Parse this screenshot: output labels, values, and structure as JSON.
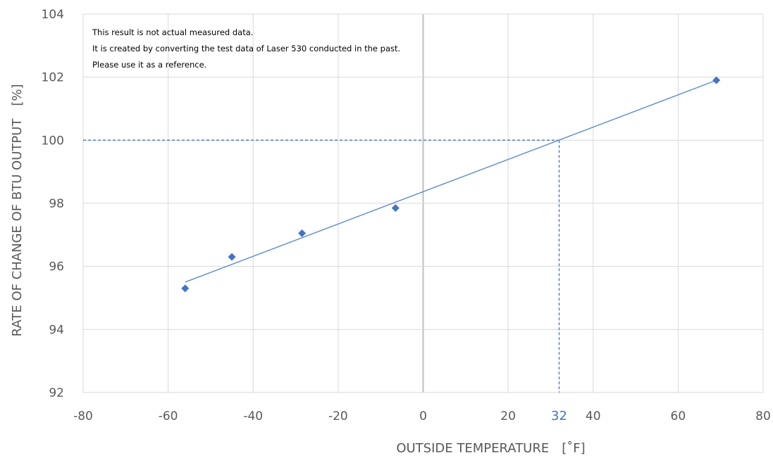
{
  "chart_data": {
    "type": "scatter",
    "xlabel": "OUTSIDE TEMPERATURE　[˚F]",
    "ylabel": "RATE OF CHANGE OF BTU OUTPUT　[%]",
    "xlim": [
      -80,
      80
    ],
    "ylim": [
      92,
      104
    ],
    "x_ticks": [
      "-80",
      "-60",
      "-40",
      "-20",
      "0",
      "20",
      "40",
      "60",
      "80"
    ],
    "y_ticks": [
      "92",
      "94",
      "96",
      "98",
      "100",
      "102",
      "104"
    ],
    "grid": true,
    "series": [
      {
        "points": [
          {
            "x": -56,
            "y": 95.3
          },
          {
            "x": -45,
            "y": 96.3
          },
          {
            "x": -28.5,
            "y": 97.05
          },
          {
            "x": -6.5,
            "y": 97.85
          },
          {
            "x": 69,
            "y": 101.9
          }
        ]
      }
    ],
    "trendline": {
      "x_start": -56,
      "x_end": 69,
      "y_start": 95.5,
      "y_end": 101.9
    },
    "reference": {
      "x": 32,
      "y": 100,
      "label": "32"
    },
    "annotations": [
      "This result is not actual measured data.",
      "It is created by converting the test data of Laser 530 conducted in the past.",
      "Please use it as a reference."
    ],
    "colors": {
      "marker": "#4472C4",
      "trendline": "#5B8BD0",
      "reference": "#4472C4",
      "grid": "#D9D9D9",
      "zero_axis": "#BFBFBF"
    }
  }
}
